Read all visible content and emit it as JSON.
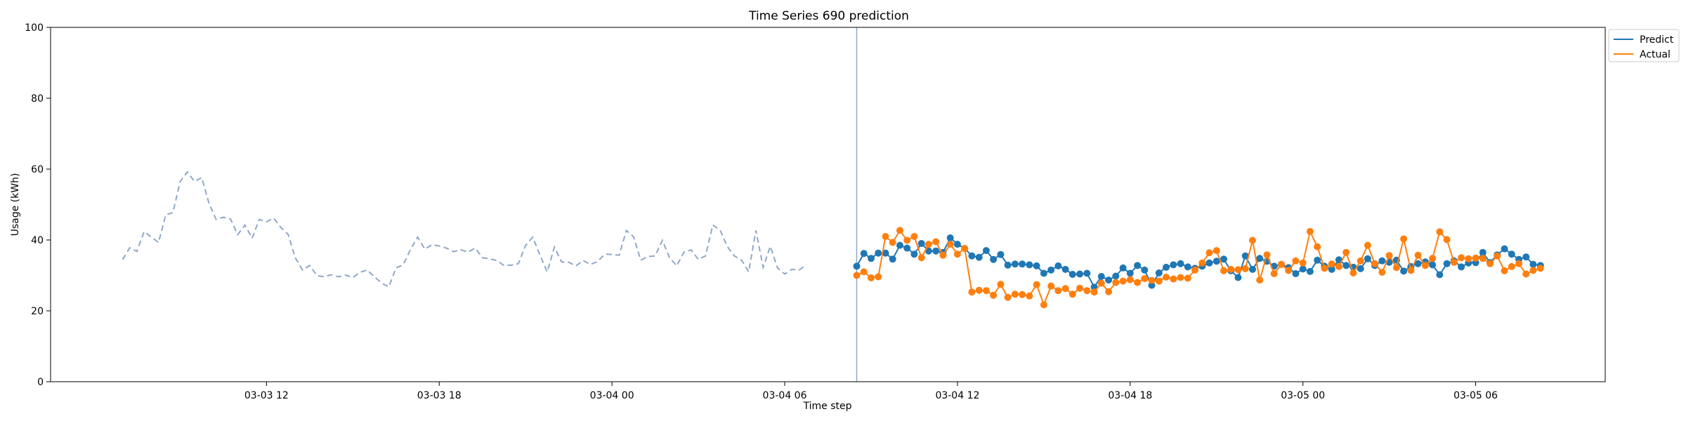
{
  "chart_data": {
    "type": "line",
    "title": "Time Series 690 prediction",
    "xlabel": "Time step",
    "ylabel": "Usage (kWh)",
    "ylim": [
      0,
      100
    ],
    "yticks": [
      0,
      20,
      40,
      60,
      80,
      100
    ],
    "x_unit": "hours since 03-03 00:00",
    "xlim": [
      4.5,
      58.5
    ],
    "xticks": [
      {
        "x": 12,
        "label": "03-03 12"
      },
      {
        "x": 18,
        "label": "03-03 18"
      },
      {
        "x": 24,
        "label": "03-04 00"
      },
      {
        "x": 30,
        "label": "03-04 06"
      },
      {
        "x": 36,
        "label": "03-04 12"
      },
      {
        "x": 42,
        "label": "03-04 18"
      },
      {
        "x": 48,
        "label": "03-05 00"
      },
      {
        "x": 54,
        "label": "03-05 06"
      }
    ],
    "grid": false,
    "legend_position": "upper-right-outside",
    "forecast_start_x": 32.5,
    "series": [
      {
        "name": "History",
        "style": "dashed",
        "color": "#8fa8c8",
        "x_start": 7.0,
        "x_step": 0.25,
        "values": [
          34.5,
          37.8,
          36.8,
          42.4,
          40.8,
          39.3,
          47.1,
          47.7,
          56.5,
          59.2,
          56.5,
          57.6,
          50.4,
          45.8,
          46.4,
          45.9,
          41.5,
          44.2,
          40.5,
          45.8,
          45.1,
          46.2,
          43.5,
          41.6,
          35.0,
          31.5,
          32.8,
          30.0,
          29.6,
          30.2,
          29.6,
          30.1,
          29.4,
          30.9,
          31.5,
          29.6,
          27.8,
          26.8,
          32.1,
          33.0,
          37.3,
          40.8,
          37.4,
          38.7,
          38.3,
          37.7,
          36.7,
          37.2,
          36.6,
          37.7,
          35.0,
          34.7,
          34.2,
          32.8,
          32.9,
          33.3,
          38.5,
          40.8,
          35.7,
          31.0,
          38.0,
          33.8,
          33.7,
          32.7,
          34.2,
          33.1,
          33.9,
          36.0,
          35.9,
          35.7,
          42.7,
          40.9,
          34.3,
          35.3,
          35.5,
          39.9,
          35.0,
          32.7,
          36.6,
          37.2,
          34.5,
          35.5,
          44.2,
          42.9,
          38.2,
          35.5,
          34.3,
          31.0,
          42.7,
          32.3,
          38.2,
          32.1,
          30.4,
          31.7,
          31.5,
          33.0
        ]
      },
      {
        "name": "Predict",
        "style": "solid-markers",
        "color": "#1f77b4",
        "x_start": 32.5,
        "x_step": 0.25,
        "values": [
          32.6,
          36.2,
          34.8,
          36.3,
          36.3,
          34.6,
          38.5,
          37.7,
          36.0,
          39.0,
          36.9,
          36.9,
          36.5,
          40.6,
          38.8,
          37.6,
          35.5,
          35.1,
          37.0,
          34.5,
          35.9,
          32.9,
          33.2,
          33.2,
          33.0,
          32.7,
          30.6,
          31.5,
          32.7,
          31.7,
          30.3,
          30.4,
          30.6,
          26.7,
          29.7,
          28.7,
          29.8,
          32.1,
          30.6,
          32.8,
          31.5,
          27.2,
          30.7,
          32.3,
          33.0,
          33.3,
          32.4,
          32.0,
          32.6,
          33.5,
          34.0,
          34.6,
          31.3,
          29.4,
          35.5,
          31.7,
          34.8,
          34.0,
          32.6,
          33.1,
          32.2,
          30.5,
          31.8,
          31.1,
          34.3,
          32.6,
          31.7,
          34.4,
          32.8,
          32.3,
          31.9,
          34.7,
          32.8,
          34.1,
          33.7,
          34.3,
          31.2,
          32.5,
          33.3,
          33.8,
          33.0,
          30.2,
          33.3,
          34.1,
          32.4,
          33.5,
          33.6,
          36.5,
          33.6,
          35.8,
          37.5,
          36.0,
          34.5,
          35.2,
          33.1,
          32.8
        ]
      },
      {
        "name": "Actual",
        "style": "solid-markers",
        "color": "#ff7f0e",
        "x_start": 32.5,
        "x_step": 0.25,
        "values": [
          30.0,
          31.0,
          29.3,
          29.6,
          41.0,
          39.3,
          42.7,
          39.9,
          41.0,
          35.0,
          38.8,
          39.5,
          35.7,
          38.8,
          36.0,
          37.6,
          25.3,
          25.8,
          25.7,
          24.4,
          27.5,
          23.8,
          24.7,
          24.6,
          24.2,
          27.4,
          21.7,
          27.0,
          25.7,
          26.3,
          24.7,
          26.4,
          25.7,
          25.3,
          27.8,
          25.4,
          28.0,
          28.4,
          28.8,
          28.0,
          29.1,
          28.6,
          28.4,
          29.5,
          29.0,
          29.4,
          29.2,
          31.5,
          33.5,
          36.4,
          37.0,
          31.3,
          31.7,
          31.6,
          31.9,
          39.9,
          28.7,
          35.8,
          30.5,
          33.1,
          31.4,
          34.1,
          33.5,
          42.4,
          38.1,
          32.0,
          33.2,
          32.5,
          36.5,
          30.7,
          34.1,
          38.5,
          33.3,
          30.9,
          35.6,
          32.2,
          40.3,
          31.4,
          35.7,
          32.8,
          34.8,
          42.3,
          40.1,
          33.7,
          35.0,
          34.7,
          34.9,
          34.8,
          33.3,
          35.5,
          31.3,
          32.5,
          33.3,
          30.4,
          31.4,
          32.0
        ]
      }
    ]
  }
}
